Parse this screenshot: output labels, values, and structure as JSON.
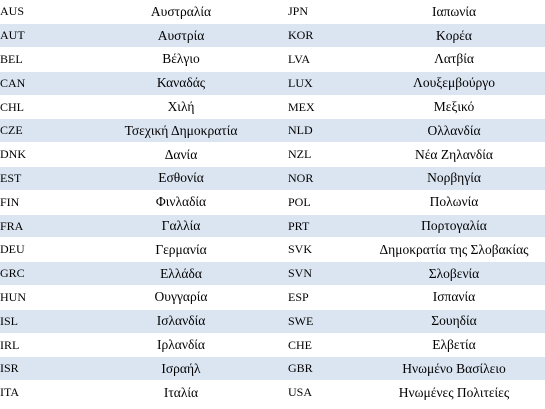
{
  "table": {
    "rows": [
      {
        "code1": "AUS",
        "name1": "Αυστραλία",
        "code2": "JPN",
        "name2": "Ιαπωνία"
      },
      {
        "code1": "AUT",
        "name1": "Αυστρία",
        "code2": "KOR",
        "name2": "Κορέα"
      },
      {
        "code1": "BEL",
        "name1": "Βέλγιο",
        "code2": "LVA",
        "name2": "Λατβία"
      },
      {
        "code1": "CAN",
        "name1": "Καναδάς",
        "code2": "LUX",
        "name2": "Λουξεμβούργο"
      },
      {
        "code1": "CHL",
        "name1": "Χιλή",
        "code2": "MEX",
        "name2": "Μεξικό"
      },
      {
        "code1": "CZE",
        "name1": "Τσεχική Δημοκρατία",
        "code2": "NLD",
        "name2": "Ολλανδία"
      },
      {
        "code1": "DNK",
        "name1": "Δανία",
        "code2": "NZL",
        "name2": "Νέα Ζηλανδία"
      },
      {
        "code1": "EST",
        "name1": "Εσθονία",
        "code2": "NOR",
        "name2": "Νορβηγία"
      },
      {
        "code1": "FIN",
        "name1": "Φινλαδία",
        "code2": "POL",
        "name2": "Πολωνία"
      },
      {
        "code1": "FRA",
        "name1": "Γαλλία",
        "code2": "PRT",
        "name2": "Πορτογαλία"
      },
      {
        "code1": "DEU",
        "name1": "Γερμανία",
        "code2": "SVK",
        "name2": "Δημοκρατία της Σλοβακίας"
      },
      {
        "code1": "GRC",
        "name1": "Ελλάδα",
        "code2": "SVN",
        "name2": "Σλοβενία"
      },
      {
        "code1": "HUN",
        "name1": "Ουγγαρία",
        "code2": "ESP",
        "name2": "Ισπανία"
      },
      {
        "code1": "ISL",
        "name1": "Ισλανδία",
        "code2": "SWE",
        "name2": "Σουηδία"
      },
      {
        "code1": "IRL",
        "name1": "Ιρλανδία",
        "code2": "CHE",
        "name2": "Ελβετία"
      },
      {
        "code1": "ISR",
        "name1": "Ισραήλ",
        "code2": "GBR",
        "name2": "Ηνωμένο Βασίλειο"
      },
      {
        "code1": "ITA",
        "name1": "Ιταλία",
        "code2": "USA",
        "name2": "Ηνωμένες Πολιτείες"
      }
    ]
  },
  "colors": {
    "row_band": "#dbe5f1",
    "row_plain": "#ffffff"
  }
}
